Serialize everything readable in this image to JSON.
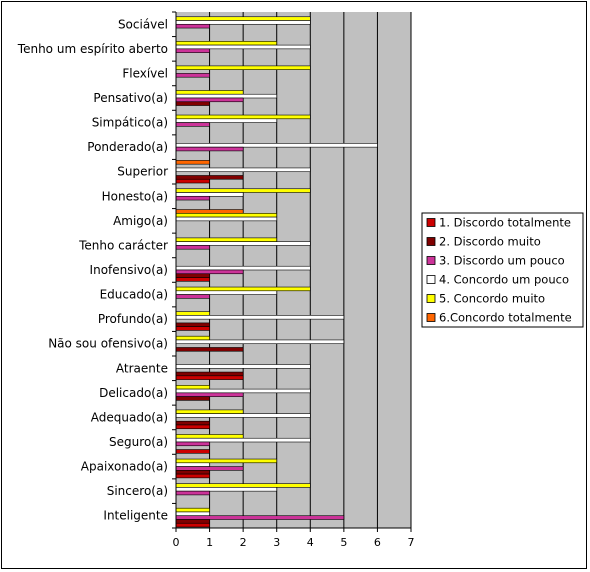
{
  "chart_data": {
    "type": "bar",
    "orientation": "horizontal",
    "categories": [
      "Sociável",
      "Tenho um espírito aberto",
      "Flexível",
      "Pensativo(a)",
      "Simpático(a)",
      "Ponderado(a)",
      "Superior",
      "Honesto(a)",
      "Amigo(a)",
      "Tenho carácter",
      "Inofensivo(a)",
      "Educado(a)",
      "Profundo(a)",
      "Não sou ofensivo(a)",
      "Atraente",
      "Delicado(a)",
      "Adequado(a)",
      "Seguro(a)",
      "Apaixonado(a)",
      "Sincero(a)",
      "Inteligente"
    ],
    "series": [
      {
        "name": "6.Concordo totalmente",
        "color": "#FF6600",
        "values": [
          0,
          0,
          0,
          0,
          0,
          0,
          1,
          0,
          2,
          0,
          0,
          0,
          0,
          0,
          0,
          0,
          0,
          0,
          0,
          0,
          0
        ]
      },
      {
        "name": "5. Concordo muito",
        "color": "#FFFF00",
        "values": [
          4,
          3,
          4,
          2,
          4,
          0,
          0,
          4,
          3,
          3,
          0,
          4,
          1,
          1,
          0,
          1,
          2,
          2,
          3,
          4,
          1
        ]
      },
      {
        "name": "4. Concordo um pouco",
        "color": "#FFFFFF",
        "values": [
          4,
          4,
          0,
          3,
          3,
          6,
          4,
          2,
          3,
          4,
          4,
          3,
          5,
          5,
          4,
          4,
          4,
          4,
          1,
          3,
          1
        ]
      },
      {
        "name": "3. Discordo um pouco",
        "color": "#CC3399",
        "values": [
          1,
          1,
          1,
          2,
          1,
          2,
          0,
          1,
          0,
          1,
          2,
          1,
          0,
          0,
          0,
          2,
          0,
          1,
          2,
          1,
          5
        ]
      },
      {
        "name": "2. Discordo muito",
        "color": "#800000",
        "values": [
          0,
          0,
          0,
          1,
          0,
          0,
          2,
          0,
          0,
          0,
          1,
          0,
          1,
          2,
          2,
          1,
          1,
          0,
          1,
          0,
          1
        ]
      },
      {
        "name": "1. Discordo totalmente",
        "color": "#CC0000",
        "values": [
          0,
          0,
          0,
          0,
          0,
          0,
          1,
          0,
          0,
          0,
          1,
          0,
          1,
          0,
          2,
          0,
          1,
          1,
          1,
          0,
          1
        ]
      }
    ],
    "xlim": [
      0,
      7
    ],
    "xticks": [
      "0",
      "1",
      "2",
      "3",
      "4",
      "5",
      "6",
      "7"
    ],
    "grid": "vertical",
    "plot_background": "#C0C0C0",
    "legend_position": "right"
  }
}
